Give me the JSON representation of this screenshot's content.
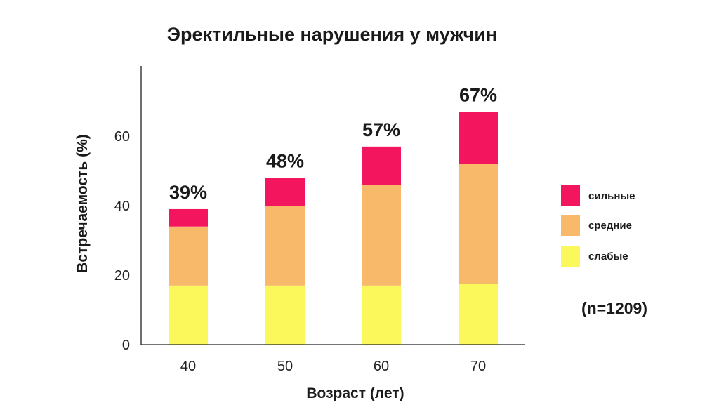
{
  "chart_data": {
    "type": "bar",
    "stacked": true,
    "title": "Эректильные нарушения у мужчин",
    "xlabel": "Возраст (лет)",
    "ylabel": "Встречаемость (%)",
    "categories": [
      "40",
      "50",
      "60",
      "70"
    ],
    "series": [
      {
        "name": "слабые",
        "color": "#faf85a",
        "values": [
          17,
          17,
          17,
          17.5
        ]
      },
      {
        "name": "средние",
        "color": "#f9b96b",
        "values": [
          17,
          23,
          29,
          34.5
        ]
      },
      {
        "name": "сильные",
        "color": "#f4155f",
        "values": [
          5,
          8,
          11,
          15
        ]
      }
    ],
    "totals": [
      "39%",
      "48%",
      "57%",
      "67%"
    ],
    "ylim": [
      0,
      80
    ],
    "yticks": [
      "0",
      "20",
      "40",
      "60"
    ],
    "grid": false,
    "legend_position": "right",
    "legend_order": [
      "сильные",
      "средние",
      "слабые"
    ],
    "annotation": "(n=1209)"
  }
}
